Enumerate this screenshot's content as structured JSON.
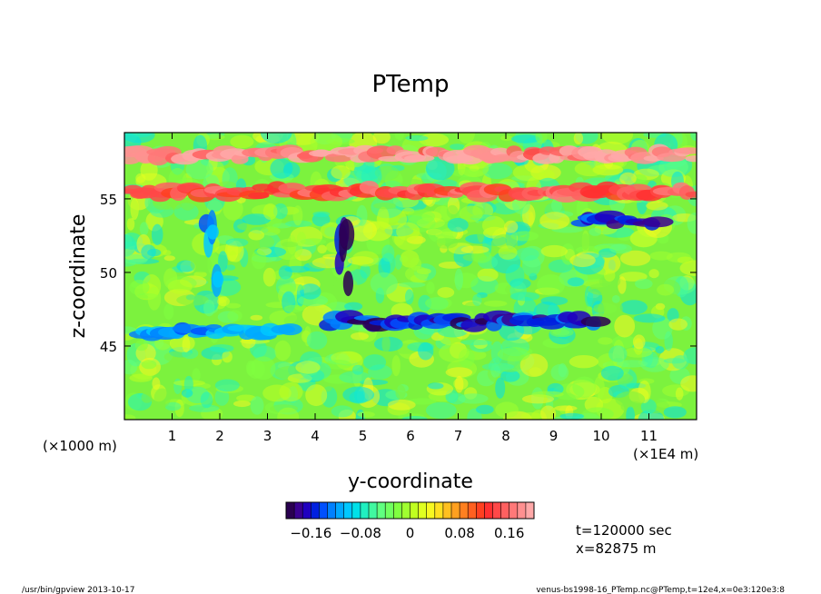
{
  "chart_data": {
    "type": "heatmap",
    "title": "PTemp",
    "xlabel": "y-coordinate",
    "ylabel": "z-coordinate",
    "x_unit_label": "(×1E4 m)",
    "y_unit_label": "(×1000 m)",
    "xlim": [
      0,
      12
    ],
    "ylim": [
      40,
      59.5
    ],
    "x_ticks": [
      1,
      2,
      3,
      4,
      5,
      6,
      7,
      8,
      9,
      10,
      11
    ],
    "y_ticks": [
      45,
      50,
      55
    ],
    "color_min": -0.2,
    "color_max": 0.2,
    "colorbar_ticks": [
      "−0.16",
      "−0.08",
      "0",
      "0.08",
      "0.16"
    ],
    "colorbar_tick_values": [
      -0.16,
      -0.08,
      0,
      0.08,
      0.16
    ],
    "colorbar_colors": [
      "#2a0050",
      "#3a0090",
      "#2000c0",
      "#0020e0",
      "#0050ff",
      "#0080ff",
      "#00a8ff",
      "#00c8ff",
      "#00e0e8",
      "#20f0c0",
      "#40f8a0",
      "#60ff80",
      "#70ff60",
      "#80ff40",
      "#a0ff30",
      "#c0ff20",
      "#e0ff20",
      "#f8f820",
      "#ffe020",
      "#ffc020",
      "#ffa020",
      "#ff8020",
      "#ff6020",
      "#ff4020",
      "#ff3030",
      "#ff4848",
      "#ff6060",
      "#ff7878",
      "#ff9090",
      "#ffa8a8"
    ],
    "features": [
      {
        "name": "negative band",
        "y_from": 4.3,
        "y_to": 10.0,
        "z": 46.7,
        "value": -0.16
      },
      {
        "name": "negative band",
        "y_from": 0.3,
        "y_to": 3.5,
        "z": 46.0,
        "value": -0.12
      },
      {
        "name": "positive layer",
        "y_from": 0.0,
        "y_to": 12.0,
        "z": 55.5,
        "value": 0.14
      },
      {
        "name": "positive layer top",
        "y_from": 0.0,
        "y_to": 12.0,
        "z": 58.0,
        "value": 0.18
      },
      {
        "name": "negative plume",
        "y_from": 4.5,
        "y_to": 4.7,
        "z": 51.0,
        "value": -0.18
      },
      {
        "name": "negative plume",
        "y_from": 1.7,
        "y_to": 2.0,
        "z": 53.0,
        "value": -0.12
      },
      {
        "name": "negative plume",
        "y_from": 9.5,
        "y_to": 11.2,
        "z": 53.5,
        "value": -0.15
      }
    ]
  },
  "annotations": {
    "time": "t=120000 sec",
    "position": "x=82875 m"
  },
  "footer": {
    "left": "/usr/bin/gpview  2013-10-17",
    "right": "venus-bs1998-16_PTemp.nc@PTemp,t=12e4,x=0e3:120e3:8"
  }
}
